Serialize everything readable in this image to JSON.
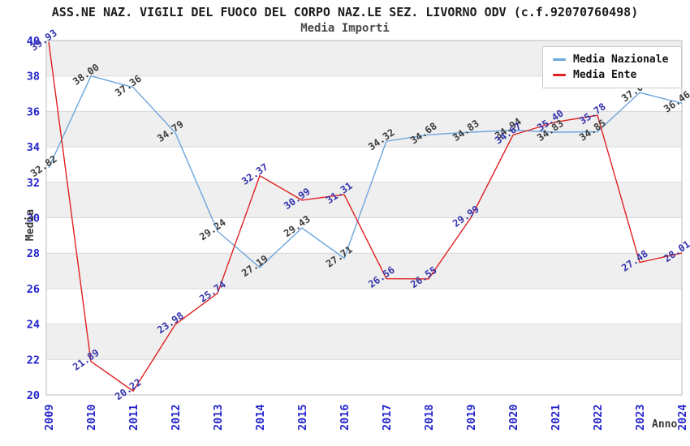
{
  "window": {
    "title": "ASS.NE NAZ. VIGILI DEL FUOCO DEL CORPO NAZ.LE SEZ. LIVORNO ODV (c.f.92070760498)",
    "subtitle": "Media Importi"
  },
  "legend": {
    "position": "top-right",
    "items": [
      {
        "label": "Media Nazionale",
        "color": "#6ca6dc"
      },
      {
        "label": "Media Ente",
        "color": "#e02020"
      }
    ]
  },
  "chart_data": {
    "type": "line",
    "title": "ASS.NE NAZ. VIGILI DEL FUOCO DEL CORPO NAZ.LE SEZ. LIVORNO ODV (c.f.92070760498)",
    "subtitle": "Media Importi",
    "xlabel": "Anno",
    "ylabel": "Media",
    "x": [
      2009,
      2010,
      2011,
      2012,
      2013,
      2014,
      2015,
      2016,
      2017,
      2018,
      2019,
      2020,
      2021,
      2022,
      2023,
      2024
    ],
    "series": [
      {
        "name": "Media Nazionale",
        "color": "#6ca6dc",
        "label_color": "#3c3c3c",
        "values": [
          32.82,
          38.0,
          37.36,
          34.79,
          29.24,
          27.19,
          29.43,
          27.71,
          34.32,
          34.68,
          34.83,
          34.94,
          34.83,
          34.85,
          37.06,
          36.46
        ]
      },
      {
        "name": "Media Ente",
        "color": "#e02020",
        "label_color": "#3434ad",
        "values": [
          39.93,
          21.89,
          20.22,
          23.98,
          25.74,
          32.37,
          30.99,
          31.31,
          26.56,
          26.55,
          29.99,
          34.67,
          35.4,
          35.78,
          27.48,
          28.01
        ]
      }
    ],
    "ylim": [
      20,
      40
    ],
    "ytick_step": 2,
    "grid": "horizontal, alternating shaded bands",
    "legend_position": "top-right",
    "tick_label_color": "#2424cc",
    "band_color": "#efefef",
    "gridline_color": "#d9d9d9",
    "plot_border_color": "#bbbbbb"
  }
}
